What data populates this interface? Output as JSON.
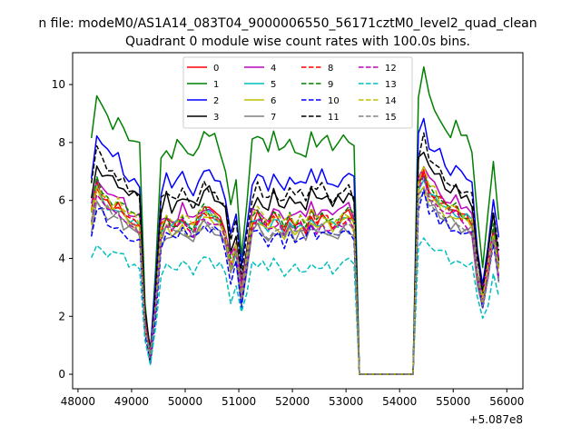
{
  "figure": {
    "suptitle": "n file: modeM0/AS1A14_083T04_9000006550_56171cztM0_level2_quad_clean"
  },
  "chart_data": {
    "type": "line",
    "title": "Quadrant 0 module wise count rates with 100.0s bins.",
    "xlabel": "",
    "ylabel": "",
    "offset_label": "+5.087e8",
    "xlim": [
      47900,
      56300
    ],
    "ylim": [
      -0.5,
      11.1
    ],
    "xticks": [
      48000,
      49000,
      50000,
      51000,
      52000,
      53000,
      54000,
      55000,
      56000
    ],
    "yticks": [
      0,
      2,
      4,
      6,
      8,
      10
    ],
    "legend_position": "upper-center",
    "x": [
      48250,
      48350,
      48450,
      48550,
      48650,
      48750,
      48850,
      48950,
      49050,
      49150,
      49250,
      49350,
      49450,
      49550,
      49650,
      49750,
      49850,
      49950,
      50050,
      50150,
      50250,
      50350,
      50450,
      50550,
      50650,
      50750,
      50850,
      50950,
      51050,
      51150,
      51250,
      51350,
      51450,
      51550,
      51650,
      51750,
      51850,
      51950,
      52050,
      52150,
      52250,
      52350,
      52450,
      52550,
      52650,
      52750,
      52850,
      52950,
      53050,
      53150,
      53250,
      53350,
      53450,
      53550,
      53650,
      53750,
      53850,
      53950,
      54050,
      54150,
      54250,
      54350,
      54450,
      54550,
      54650,
      54750,
      54850,
      54950,
      55050,
      55150,
      55250,
      55350,
      55450,
      55550,
      55650,
      55750,
      55850
    ],
    "series": [
      {
        "name": "0",
        "color": "#ff0000",
        "dash": "solid",
        "scale": 0.94,
        "noise": 0.25
      },
      {
        "name": "1",
        "color": "#008000",
        "dash": "solid",
        "scale": 1.4,
        "noise": 0.3
      },
      {
        "name": "2",
        "color": "#0000ff",
        "dash": "solid",
        "scale": 1.18,
        "noise": 0.25
      },
      {
        "name": "3",
        "color": "#000000",
        "dash": "solid",
        "scale": 1.06,
        "noise": 0.28
      },
      {
        "name": "4",
        "color": "#bf00bf",
        "dash": "solid",
        "scale": 0.98,
        "noise": 0.25
      },
      {
        "name": "5",
        "color": "#00bfbf",
        "dash": "solid",
        "scale": 0.92,
        "noise": 0.22
      },
      {
        "name": "6",
        "color": "#bfbf00",
        "dash": "solid",
        "scale": 0.9,
        "noise": 0.22
      },
      {
        "name": "7",
        "color": "#808080",
        "dash": "solid",
        "scale": 0.86,
        "noise": 0.22
      },
      {
        "name": "8",
        "color": "#ff0000",
        "dash": "dashed",
        "scale": 0.93,
        "noise": 0.22
      },
      {
        "name": "9",
        "color": "#008000",
        "dash": "dashed",
        "scale": 0.95,
        "noise": 0.22
      },
      {
        "name": "10",
        "color": "#0000ff",
        "dash": "dashed",
        "scale": 0.84,
        "noise": 0.25
      },
      {
        "name": "11",
        "color": "#000000",
        "dash": "dashed",
        "scale": 1.1,
        "noise": 0.25
      },
      {
        "name": "12",
        "color": "#bf00bf",
        "dash": "dashed",
        "scale": 0.9,
        "noise": 0.22
      },
      {
        "name": "13",
        "color": "#00bfbf",
        "dash": "dashed",
        "scale": 0.66,
        "noise": 0.2
      },
      {
        "name": "14",
        "color": "#bfbf00",
        "dash": "dashed",
        "scale": 0.95,
        "noise": 0.22
      },
      {
        "name": "15",
        "color": "#808080",
        "dash": "dashed",
        "scale": 0.88,
        "noise": 0.22
      }
    ],
    "base_profile": [
      5.9,
      7.0,
      6.6,
      6.4,
      6.2,
      6.3,
      6.0,
      5.8,
      5.7,
      5.6,
      1.9,
      0.6,
      2.5,
      5.4,
      5.7,
      5.5,
      5.6,
      5.8,
      5.5,
      5.4,
      5.7,
      6.0,
      5.9,
      5.8,
      5.6,
      5.2,
      4.0,
      4.7,
      3.0,
      4.3,
      5.6,
      5.9,
      5.7,
      5.5,
      5.8,
      5.6,
      5.4,
      5.7,
      5.5,
      5.6,
      5.4,
      5.9,
      5.6,
      5.8,
      5.7,
      5.5,
      5.6,
      5.8,
      5.9,
      5.6,
      0.0,
      0.0,
      0.0,
      0.0,
      0.0,
      0.0,
      0.0,
      0.0,
      0.0,
      0.0,
      0.0,
      6.9,
      7.4,
      6.8,
      6.6,
      6.4,
      6.2,
      6.0,
      6.1,
      5.9,
      5.8,
      5.6,
      3.8,
      2.7,
      3.8,
      5.3,
      3.9
    ]
  }
}
